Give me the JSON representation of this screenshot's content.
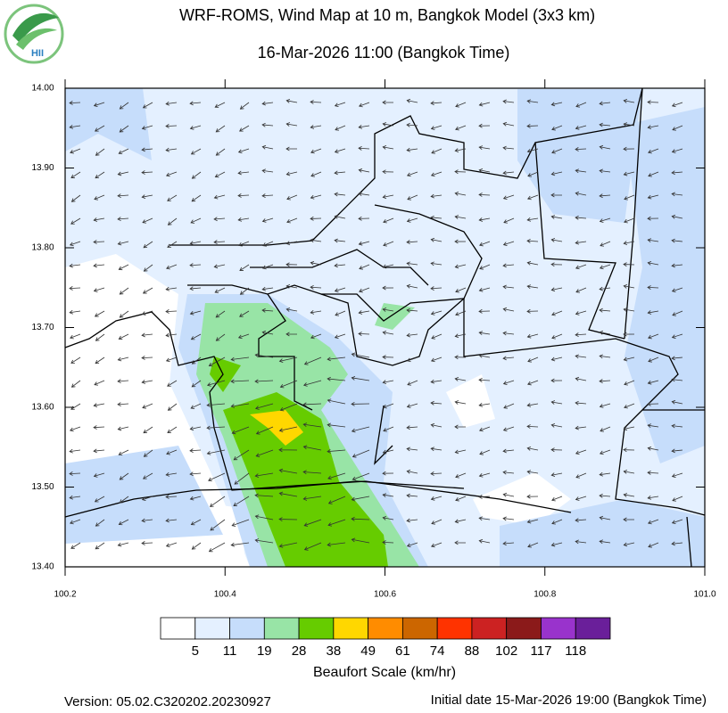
{
  "header": {
    "title": "WRF-ROMS, Wind Map at 10 m, Bangkok Model (3x3 km)",
    "subtitle": "16-Mar-2026 11:00 (Bangkok Time)",
    "logo": "HII"
  },
  "map": {
    "lat_labels": [
      "14.00",
      "13.90",
      "13.80",
      "13.70",
      "13.60",
      "13.50",
      "13.40"
    ],
    "lon_labels": [
      "100.2",
      "100.4",
      "100.6",
      "100.8",
      "101.0"
    ]
  },
  "legend": {
    "title": "Beaufort Scale (km/hr)",
    "labels": [
      "5",
      "11",
      "19",
      "28",
      "38",
      "49",
      "61",
      "74",
      "88",
      "102",
      "117",
      "118"
    ],
    "colors": [
      "#ffffff",
      "#e4f0ff",
      "#c6ddfb",
      "#98e4a6",
      "#66cc00",
      "#ffd700",
      "#ff8c00",
      "#cc6600",
      "#ff3300",
      "#cc2222",
      "#8b1a1a",
      "#9933cc",
      "#6a1f9a"
    ]
  },
  "footer": {
    "version": "Version: 05.02.C320202.20230927",
    "initial": "Initial date 15-Mar-2026 19:00 (Bangkok Time)"
  }
}
